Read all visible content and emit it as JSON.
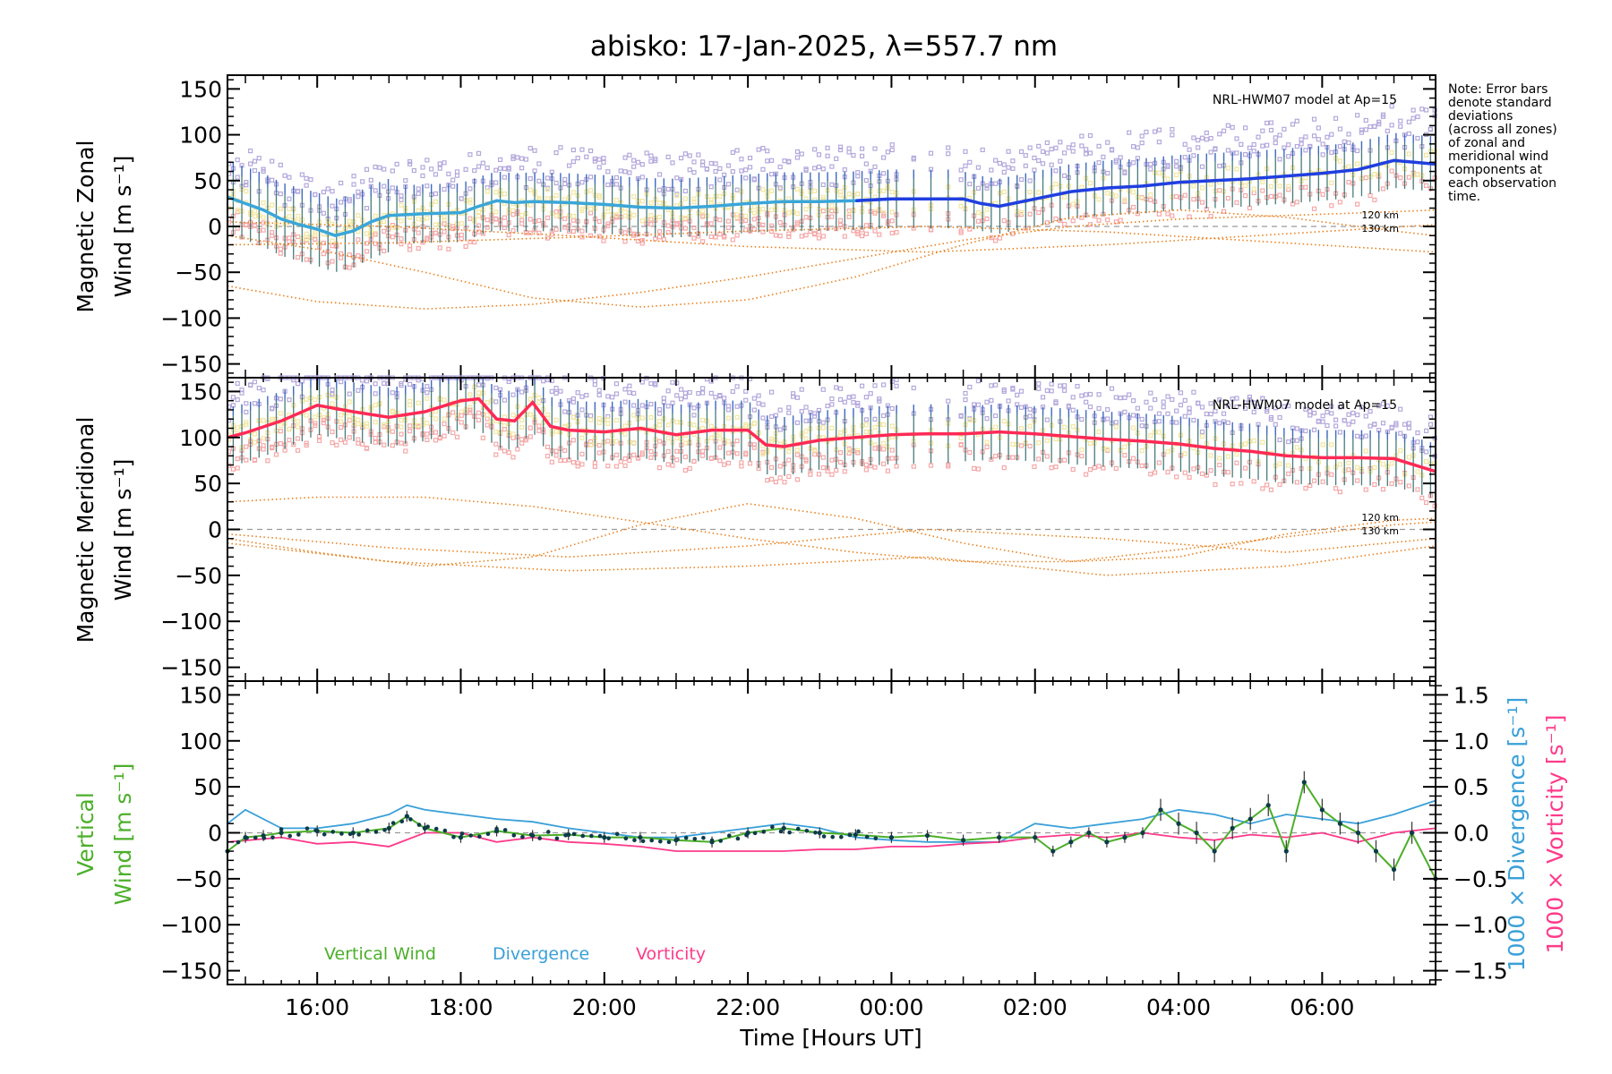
{
  "title": "abisko: 17-Jan-2025, λ=557.7 nm",
  "note_lines": [
    "Note: Error bars",
    "denote standard",
    "deviations",
    "(across all zones)",
    "of zonal and",
    "meridional wind",
    "components at",
    "each observation",
    "time."
  ],
  "colors": {
    "zonal": "#1f3fe0",
    "zonal_early": "#3aa6d8",
    "meridional": "#ff2a55",
    "model": "#e8801e",
    "scatter_lavender": "#b4a8dc",
    "scatter_pink": "#f6a8a8",
    "scatter_yellow": "#f4e6a0",
    "vertical": "#4caf2a",
    "divergence": "#3aa0d8",
    "vorticity": "#ff3a8a",
    "points": "#0d3b4a",
    "zero_line": "#9a9a9a"
  },
  "chart_data": [
    {
      "type": "line",
      "panel": "zonal",
      "ylabel_lines": [
        "Magnetic Zonal",
        "Wind [m s⁻¹]"
      ],
      "model_label": "NRL-HWM07 model at Ap=15",
      "model_alt_labels": [
        "120 km",
        "130 km"
      ],
      "ylim": [
        -165,
        165
      ],
      "yticks": [
        "150",
        "100",
        "50",
        "0",
        "−50",
        "−100",
        "−150"
      ],
      "x_range_hours": [
        14.75,
        31.58
      ],
      "x": [
        14.75,
        15.0,
        15.25,
        15.5,
        15.75,
        16.0,
        16.25,
        16.5,
        16.75,
        17.0,
        17.5,
        18.0,
        18.25,
        18.5,
        18.75,
        19.0,
        19.5,
        20.0,
        20.5,
        21.0,
        21.5,
        22.0,
        22.5,
        23.0,
        23.5,
        24.0,
        24.5,
        25.0,
        25.25,
        25.5,
        26.0,
        26.5,
        27.0,
        27.5,
        28.0,
        28.5,
        29.0,
        29.5,
        30.0,
        30.5,
        31.0,
        31.58
      ],
      "values": [
        32,
        25,
        18,
        8,
        2,
        -3,
        -10,
        -5,
        5,
        12,
        14,
        15,
        22,
        28,
        26,
        27,
        26,
        24,
        21,
        20,
        22,
        25,
        27,
        27,
        28,
        30,
        30,
        30,
        25,
        22,
        30,
        38,
        42,
        44,
        48,
        50,
        52,
        55,
        58,
        62,
        72,
        68
      ],
      "model_series": [
        {
          "name": "120 km",
          "x": [
            14.75,
            16.0,
            17.5,
            19.0,
            20.5,
            22.0,
            23.5,
            25.0,
            26.5,
            28.0,
            29.5,
            31.0,
            31.58
          ],
          "values": [
            -65,
            -82,
            -90,
            -85,
            -72,
            -55,
            -35,
            -15,
            0,
            8,
            12,
            16,
            18
          ]
        },
        {
          "name": "130 km",
          "x": [
            14.75,
            16.0,
            17.5,
            19.0,
            20.5,
            22.0,
            23.5,
            25.0,
            26.5,
            28.0,
            29.5,
            31.0,
            31.58
          ],
          "values": [
            -10,
            -25,
            -50,
            -78,
            -88,
            -80,
            -55,
            -20,
            10,
            18,
            10,
            -5,
            -10
          ]
        },
        {
          "name": "",
          "x": [
            14.75,
            17.0,
            19.5,
            22.0,
            24.5,
            27.0,
            29.5,
            31.58
          ],
          "values": [
            5,
            0,
            -10,
            -22,
            -28,
            -20,
            -8,
            2
          ]
        },
        {
          "name": "",
          "x": [
            14.75,
            17.0,
            19.5,
            22.0,
            24.5,
            27.0,
            29.5,
            31.58
          ],
          "values": [
            -20,
            -18,
            -12,
            -5,
            0,
            -6,
            -18,
            -28
          ]
        }
      ]
    },
    {
      "type": "line",
      "panel": "meridional",
      "ylabel_lines": [
        "Magnetic Meridional",
        "Wind [m s⁻¹]"
      ],
      "model_label": "NRL-HWM07 model at Ap=15",
      "model_alt_labels": [
        "120 km",
        "130 km"
      ],
      "ylim": [
        -165,
        165
      ],
      "yticks": [
        "150",
        "100",
        "50",
        "0",
        "−50",
        "−100",
        "−150"
      ],
      "x_range_hours": [
        14.75,
        31.58
      ],
      "x": [
        14.75,
        15.0,
        15.5,
        16.0,
        16.5,
        17.0,
        17.5,
        18.0,
        18.25,
        18.5,
        18.75,
        19.0,
        19.25,
        19.5,
        20.0,
        20.5,
        21.0,
        21.5,
        22.0,
        22.25,
        22.5,
        23.0,
        23.5,
        24.0,
        24.5,
        25.0,
        25.5,
        26.0,
        26.5,
        27.0,
        27.5,
        28.0,
        28.5,
        29.0,
        29.5,
        30.0,
        30.5,
        31.0,
        31.58
      ],
      "values": [
        100,
        105,
        118,
        135,
        128,
        122,
        128,
        140,
        142,
        120,
        118,
        138,
        112,
        108,
        106,
        110,
        103,
        108,
        108,
        92,
        90,
        97,
        100,
        103,
        104,
        104,
        106,
        104,
        101,
        98,
        96,
        93,
        88,
        85,
        80,
        78,
        78,
        77,
        63
      ],
      "model_series": [
        {
          "name": "120 km",
          "x": [
            14.75,
            16.0,
            17.5,
            19.0,
            20.5,
            22.0,
            23.5,
            25.0,
            26.5,
            28.0,
            29.5,
            31.0,
            31.58
          ],
          "values": [
            -10,
            -25,
            -40,
            -30,
            5,
            28,
            12,
            -15,
            -35,
            -30,
            -5,
            10,
            12
          ]
        },
        {
          "name": "130 km",
          "x": [
            14.75,
            16.0,
            17.5,
            19.0,
            20.5,
            22.0,
            23.5,
            25.0,
            26.5,
            28.0,
            29.5,
            31.0,
            31.58
          ],
          "values": [
            30,
            35,
            35,
            25,
            8,
            -10,
            -25,
            -35,
            -35,
            -22,
            -8,
            5,
            8
          ]
        },
        {
          "name": "",
          "x": [
            14.75,
            17.0,
            19.5,
            22.0,
            24.5,
            27.0,
            29.5,
            31.58
          ],
          "values": [
            -15,
            -35,
            -45,
            -40,
            -30,
            -50,
            -40,
            -18
          ]
        },
        {
          "name": "",
          "x": [
            14.75,
            17.0,
            19.5,
            22.0,
            24.5,
            27.0,
            29.5,
            31.58
          ],
          "values": [
            -5,
            -20,
            -30,
            -18,
            0,
            -10,
            -25,
            -10
          ]
        }
      ]
    },
    {
      "type": "line",
      "panel": "vertical",
      "ylabel_lines": [
        "Vertical",
        "Wind [m s⁻¹]"
      ],
      "right_labels": [
        "1000 × Divergence [s⁻¹]",
        "1000 × Vorticity [s⁻¹]"
      ],
      "ylim": [
        -165,
        165
      ],
      "yticks": [
        "150",
        "100",
        "50",
        "0",
        "−50",
        "−100",
        "−150"
      ],
      "y2lim": [
        -1.65,
        1.65
      ],
      "y2ticks": [
        "1.5",
        "1.0",
        "0.5",
        "0.0",
        "−0.5",
        "−1.0",
        "−1.5"
      ],
      "xticks": [
        "16:00",
        "18:00",
        "20:00",
        "22:00",
        "00:00",
        "02:00",
        "04:00",
        "06:00"
      ],
      "xtick_hours": [
        16,
        18,
        20,
        22,
        24,
        26,
        28,
        30
      ],
      "xlabel": "Time [Hours UT]",
      "legend": [
        "Vertical Wind",
        "Divergence",
        "Vorticity"
      ],
      "x_range_hours": [
        14.75,
        31.58
      ],
      "series": [
        {
          "name": "Vertical Wind",
          "x": [
            14.75,
            15.0,
            15.25,
            15.5,
            16.0,
            16.5,
            17.0,
            17.25,
            17.5,
            18.0,
            18.5,
            19.0,
            19.5,
            20.0,
            20.5,
            21.0,
            21.5,
            22.0,
            22.5,
            23.0,
            23.5,
            24.0,
            24.5,
            25.0,
            25.5,
            26.0,
            26.25,
            26.5,
            26.75,
            27.0,
            27.25,
            27.5,
            27.75,
            28.0,
            28.25,
            28.5,
            28.75,
            29.0,
            29.25,
            29.5,
            29.75,
            30.0,
            30.25,
            30.5,
            30.75,
            31.0,
            31.25,
            31.58
          ],
          "values": [
            -20,
            -5,
            -3,
            0,
            2,
            0,
            5,
            18,
            5,
            -5,
            2,
            -3,
            -2,
            -5,
            -5,
            -8,
            -10,
            0,
            5,
            0,
            -2,
            -5,
            -3,
            -8,
            -5,
            -5,
            -20,
            -10,
            0,
            -10,
            -5,
            0,
            25,
            10,
            0,
            -20,
            5,
            15,
            30,
            -20,
            55,
            25,
            10,
            0,
            -20,
            -40,
            0,
            -50
          ]
        },
        {
          "name": "Divergence",
          "x": [
            14.75,
            15.0,
            15.5,
            16.0,
            16.5,
            17.0,
            17.25,
            17.5,
            18.0,
            18.5,
            19.0,
            19.5,
            20.0,
            20.5,
            21.0,
            21.5,
            22.0,
            22.5,
            23.0,
            23.5,
            24.0,
            24.5,
            25.0,
            25.5,
            26.0,
            26.5,
            27.0,
            27.5,
            28.0,
            28.5,
            29.0,
            29.5,
            30.0,
            30.5,
            31.0,
            31.58
          ],
          "values": [
            0.1,
            0.25,
            0.05,
            0.05,
            0.1,
            0.2,
            0.3,
            0.25,
            0.2,
            0.15,
            0.12,
            0.05,
            0.0,
            -0.05,
            -0.05,
            0.0,
            0.05,
            0.1,
            0.05,
            -0.05,
            -0.08,
            -0.1,
            -0.1,
            -0.1,
            0.1,
            0.05,
            0.1,
            0.15,
            0.25,
            0.2,
            0.1,
            0.2,
            0.15,
            0.1,
            0.2,
            0.35
          ]
        },
        {
          "name": "Vorticity",
          "x": [
            14.75,
            15.5,
            16.0,
            16.5,
            17.0,
            17.5,
            18.0,
            18.5,
            19.0,
            19.5,
            20.0,
            20.5,
            21.0,
            21.5,
            22.0,
            22.5,
            23.0,
            23.5,
            24.0,
            24.5,
            25.0,
            25.5,
            26.0,
            26.5,
            27.0,
            27.5,
            28.0,
            28.5,
            29.0,
            29.5,
            30.0,
            30.5,
            31.0,
            31.58
          ],
          "values": [
            -0.1,
            -0.05,
            -0.12,
            -0.1,
            -0.15,
            0.0,
            0.0,
            -0.1,
            -0.05,
            -0.1,
            -0.12,
            -0.15,
            -0.2,
            -0.2,
            -0.2,
            -0.2,
            -0.18,
            -0.18,
            -0.15,
            -0.15,
            -0.12,
            -0.1,
            -0.05,
            -0.02,
            -0.05,
            0.0,
            -0.05,
            -0.08,
            -0.02,
            -0.05,
            0.0,
            -0.1,
            0.0,
            0.05
          ]
        }
      ]
    }
  ]
}
